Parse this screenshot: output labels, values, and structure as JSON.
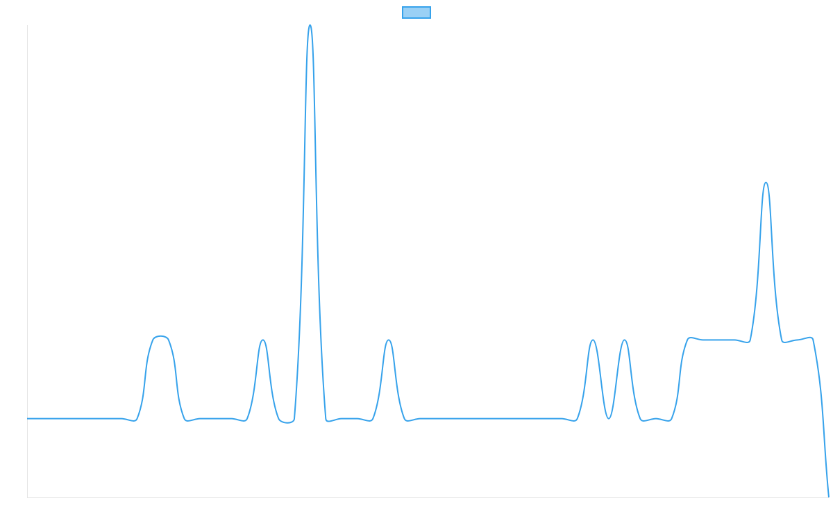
{
  "chart_data": {
    "type": "line",
    "categories": [
      null,
      null,
      null,
      null,
      null,
      null,
      null,
      null,
      null,
      null,
      null,
      null,
      null,
      null,
      null,
      null,
      null,
      null,
      null,
      null,
      null,
      null,
      null,
      null,
      null,
      null,
      null,
      null,
      null,
      null,
      null,
      null,
      null,
      null,
      null,
      null,
      null,
      null,
      null,
      null,
      null,
      null,
      null,
      null,
      null,
      null,
      null,
      null,
      null,
      null,
      null,
      null
    ],
    "series": [
      {
        "color": "#36a2eb",
        "values": [
          1,
          1,
          1,
          1,
          1,
          1,
          1,
          1,
          2,
          2,
          1,
          1,
          1,
          1,
          1,
          2,
          1,
          1,
          6,
          1,
          1,
          1,
          1,
          2,
          1,
          1,
          1,
          1,
          1,
          1,
          1,
          1,
          1,
          1,
          1,
          1,
          2,
          1,
          2,
          1,
          1,
          1,
          2,
          2,
          2,
          2,
          2,
          4,
          2,
          2,
          2,
          0
        ]
      }
    ],
    "ylim": [
      0,
      6
    ]
  }
}
